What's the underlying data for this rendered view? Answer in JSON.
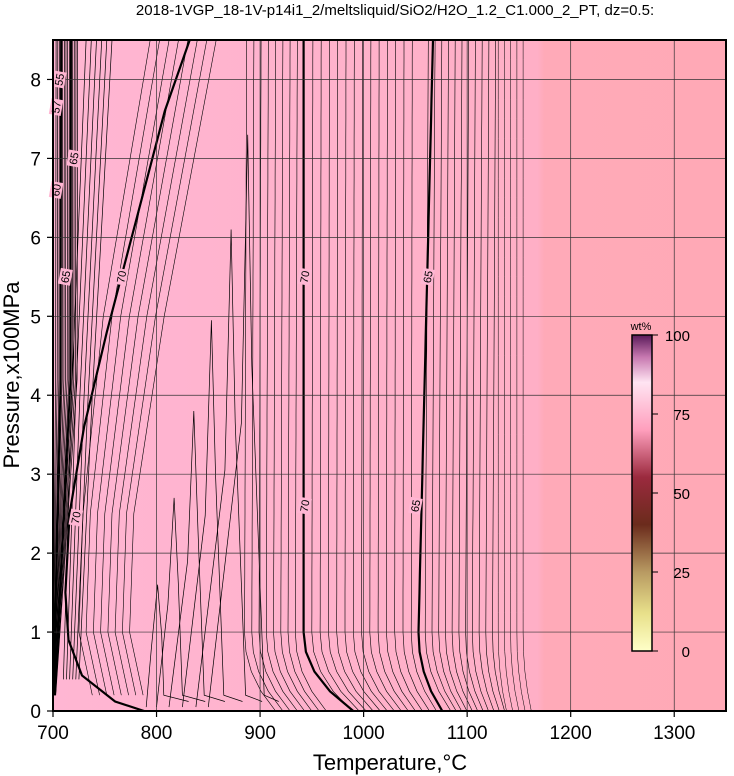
{
  "chart_data": {
    "type": "heatmap",
    "title": "2018-1VGP_18-1V-p14i1_2/meltsliquid/SiO2/H2O_1.2_C1.000_2_PT, dz=0.5:",
    "xlabel": "Temperature,°C",
    "ylabel": "Pressure,x100MPa",
    "xlim": [
      700,
      1350
    ],
    "ylim": [
      0,
      8.5
    ],
    "x_ticks": [
      700,
      800,
      900,
      1000,
      1100,
      1200,
      1300
    ],
    "y_ticks": [
      0,
      1,
      2,
      3,
      4,
      5,
      6,
      7,
      8
    ],
    "grid": true,
    "colors": {
      "background_low_T": "#ffb4cf",
      "background_high_T": "#ffaab7",
      "contour_line": "#000000"
    },
    "contour_labels": [
      {
        "text": "55",
        "x": 706,
        "y": 8.0
      },
      {
        "text": "57",
        "x": 703,
        "y": 7.65
      },
      {
        "text": "60",
        "x": 703,
        "y": 6.6
      },
      {
        "text": "65",
        "x": 720,
        "y": 7.0
      },
      {
        "text": "65",
        "x": 712,
        "y": 5.5
      },
      {
        "text": "70",
        "x": 766,
        "y": 5.5
      },
      {
        "text": "70",
        "x": 722,
        "y": 2.45
      },
      {
        "text": "70",
        "x": 943,
        "y": 5.5
      },
      {
        "text": "70",
        "x": 943,
        "y": 2.6
      },
      {
        "text": "65",
        "x": 1062,
        "y": 5.5
      },
      {
        "text": "65",
        "x": 1050,
        "y": 2.6
      }
    ],
    "colorbar": {
      "unit": "wt%",
      "ticks": [
        0,
        25,
        50,
        75,
        100
      ],
      "range": [
        0,
        100
      ]
    }
  }
}
